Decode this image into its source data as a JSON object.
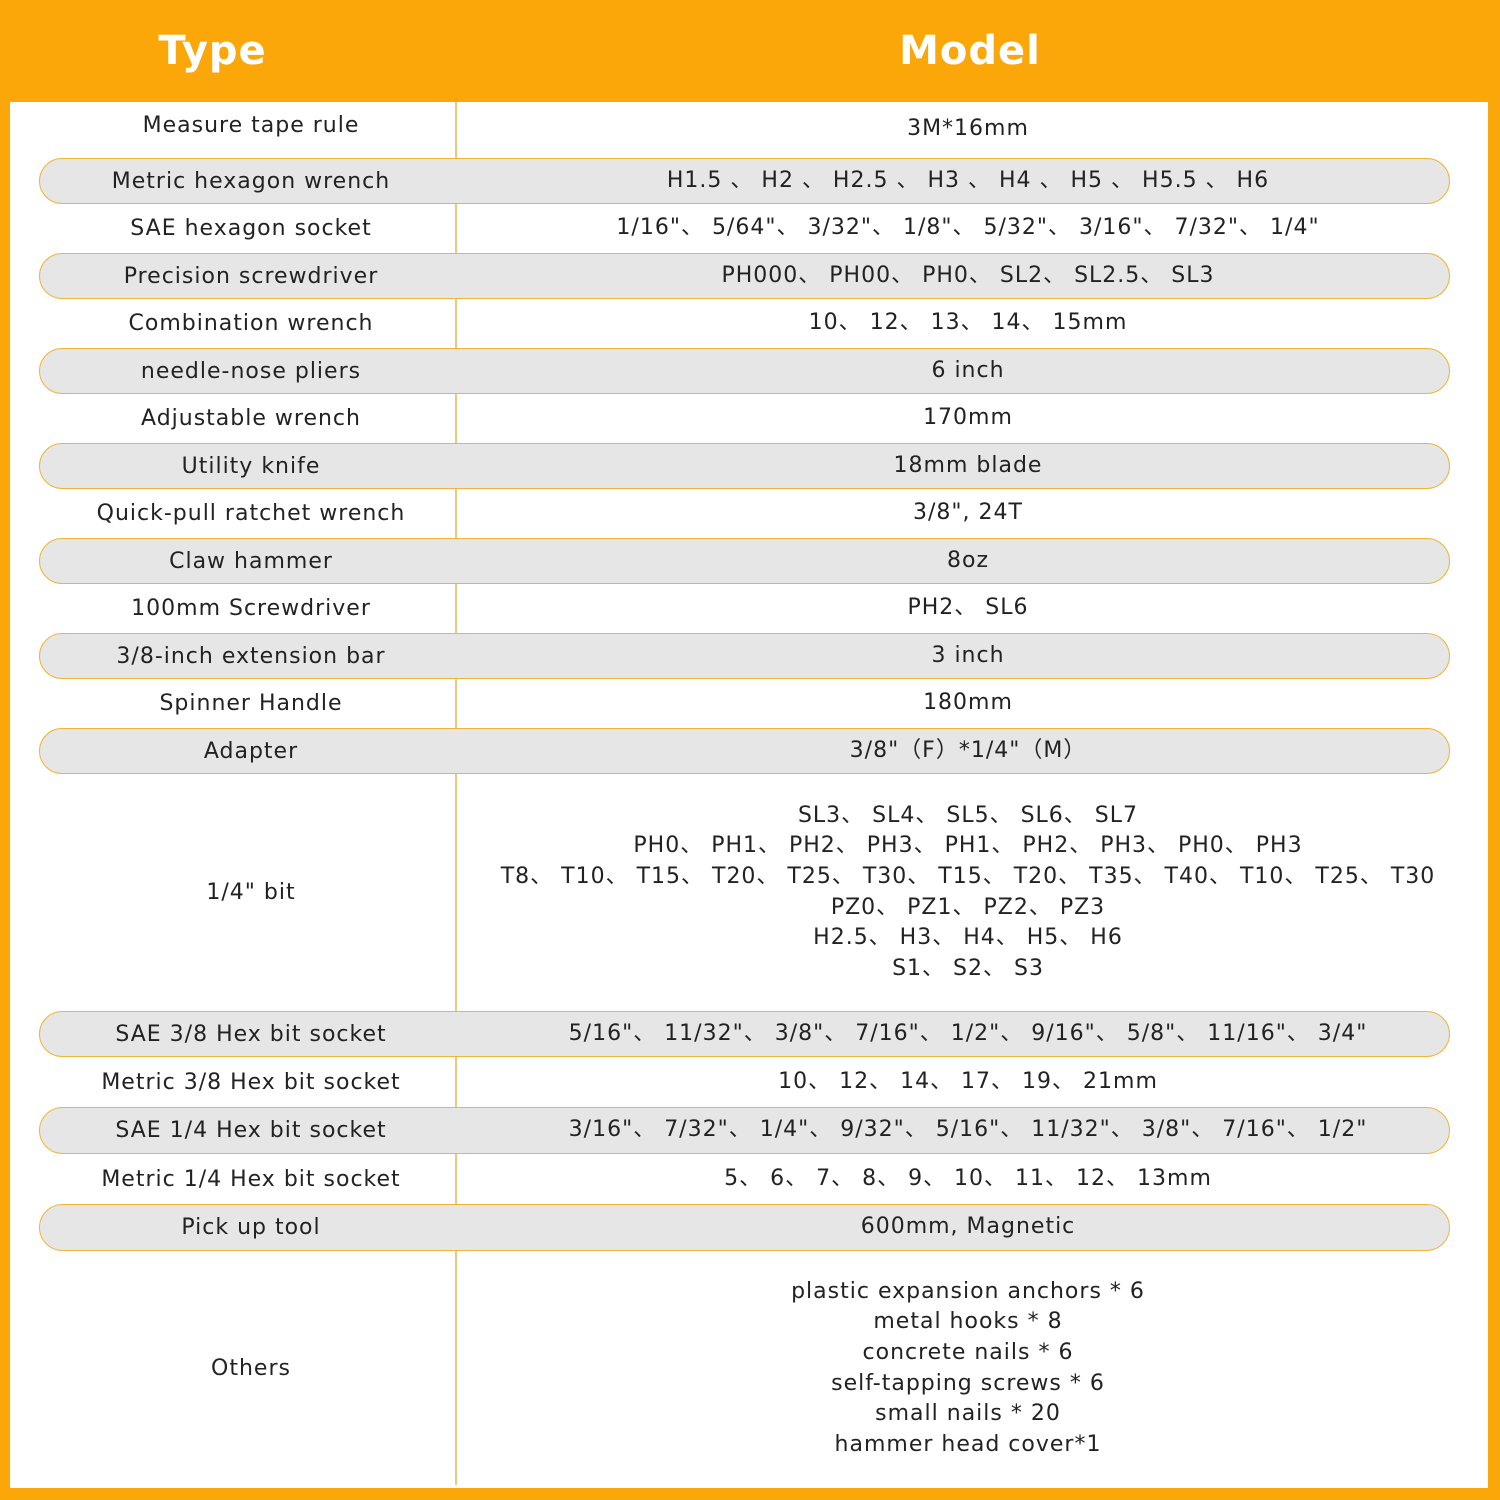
{
  "header": {
    "type": "Type",
    "model": "Model"
  },
  "rows": [
    {
      "type": "Measure tape rule",
      "model": [
        "3M*16mm"
      ]
    },
    {
      "type": "Metric hexagon wrench",
      "model": [
        "H1.5 、 H2 、  H2.5 、 H3 、 H4 、 H5 、 H5.5  、 H6"
      ]
    },
    {
      "type": "SAE hexagon socket",
      "model": [
        "1/16\"、 5/64\"、 3/32\"、 1/8\"、 5/32\"、 3/16\"、 7/32\"、 1/4\""
      ]
    },
    {
      "type": "Precision screwdriver",
      "model": [
        "PH000、 PH00、 PH0、 SL2、 SL2.5、 SL3"
      ]
    },
    {
      "type": "Combination wrench",
      "model": [
        "10、 12、 13、 14、 15mm"
      ]
    },
    {
      "type": "needle-nose pliers",
      "model": [
        "6 inch"
      ]
    },
    {
      "type": "Adjustable wrench",
      "model": [
        "170mm"
      ]
    },
    {
      "type": "Utility knife",
      "model": [
        "18mm blade"
      ]
    },
    {
      "type": "Quick-pull ratchet wrench",
      "model": [
        "3/8\", 24T"
      ]
    },
    {
      "type": "Claw hammer",
      "model": [
        "8oz"
      ]
    },
    {
      "type": "100mm Screwdriver",
      "model": [
        "PH2、 SL6"
      ]
    },
    {
      "type": "3/8-inch extension bar",
      "model": [
        "3 inch"
      ]
    },
    {
      "type": "Spinner Handle",
      "model": [
        "180mm"
      ]
    },
    {
      "type": "Adapter",
      "model": [
        "3/8\"（F）*1/4\"（M）"
      ]
    },
    {
      "type": "1/4\" bit",
      "model": [
        "SL3、 SL4、 SL5、 SL6、 SL7",
        "PH0、 PH1、 PH2、 PH3、 PH1、 PH2、 PH3、 PH0、 PH3",
        "T8、 T10、 T15、 T20、 T25、 T30、 T15、 T20、 T35、 T40、 T10、 T25、 T30",
        "PZ0、 PZ1、 PZ2、 PZ3",
        "H2.5、 H3、 H4、 H5、 H6",
        "S1、 S2、 S3"
      ]
    },
    {
      "type": "SAE 3/8 Hex bit socket",
      "model": [
        "5/16\"、 11/32\"、 3/8\"、 7/16\"、 1/2\"、 9/16\"、 5/8\"、 11/16\"、 3/4\""
      ]
    },
    {
      "type": "Metric 3/8 Hex bit socket",
      "model": [
        "10、 12、 14、 17、 19、 21mm"
      ]
    },
    {
      "type": "SAE 1/4 Hex bit socket",
      "model": [
        "3/16\"、 7/32\"、 1/4\"、 9/32\"、 5/16\"、 11/32\"、 3/8\"、 7/16\"、 1/2\""
      ]
    },
    {
      "type": "Metric 1/4 Hex bit socket",
      "model": [
        "5、 6、 7、 8、 9、 10、 11、 12、 13mm"
      ]
    },
    {
      "type": "Pick up tool",
      "model": [
        "600mm, Magnetic"
      ]
    },
    {
      "type": "Others",
      "model": [
        "plastic expansion anchors * 6",
        "metal hooks * 8",
        "concrete nails * 6",
        "self-tapping screws * 6",
        "small nails * 20",
        "hammer head cover*1"
      ]
    }
  ],
  "colors": {
    "accent": "#FBA70A",
    "pill_fill": "#e6e6e6",
    "pill_border": "#f1b536"
  }
}
